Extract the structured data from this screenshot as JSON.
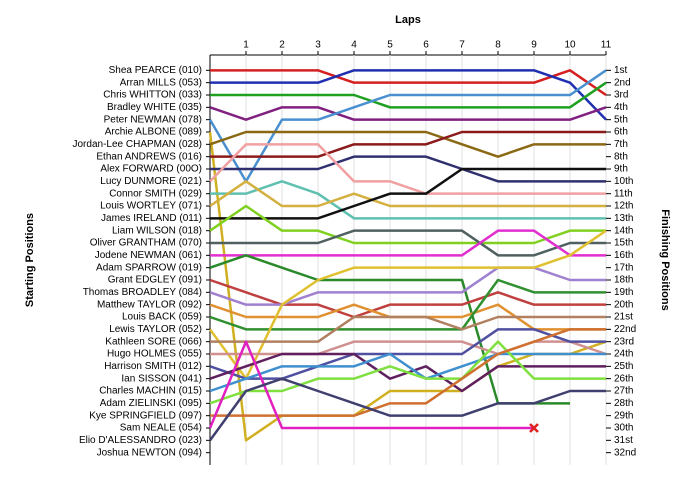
{
  "chart_data": {
    "type": "line",
    "xlabel": "Laps",
    "ylabel": "Starting Positions",
    "y2label": "Finishing Positions",
    "xlim": [
      0,
      11
    ],
    "xticks": [
      1,
      2,
      3,
      4,
      5,
      6,
      7,
      8,
      9,
      10,
      11
    ],
    "ylim": [
      33,
      0
    ],
    "yticks": [
      {
        "value": 1,
        "label": "1st"
      },
      {
        "value": 2,
        "label": "2nd"
      },
      {
        "value": 3,
        "label": "3rd"
      },
      {
        "value": 4,
        "label": "4th"
      },
      {
        "value": 5,
        "label": "5th"
      },
      {
        "value": 6,
        "label": "6th"
      },
      {
        "value": 7,
        "label": "7th"
      },
      {
        "value": 8,
        "label": "8th"
      },
      {
        "value": 9,
        "label": "9th"
      },
      {
        "value": 10,
        "label": "10th"
      },
      {
        "value": 11,
        "label": "11th"
      },
      {
        "value": 12,
        "label": "12th"
      },
      {
        "value": 13,
        "label": "13th"
      },
      {
        "value": 14,
        "label": "14th"
      },
      {
        "value": 15,
        "label": "15th"
      },
      {
        "value": 16,
        "label": "16th"
      },
      {
        "value": 17,
        "label": "17th"
      },
      {
        "value": 18,
        "label": "18th"
      },
      {
        "value": 19,
        "label": "19th"
      },
      {
        "value": 20,
        "label": "20th"
      },
      {
        "value": 21,
        "label": "21st"
      },
      {
        "value": 22,
        "label": "22nd"
      },
      {
        "value": 23,
        "label": "23rd"
      },
      {
        "value": 24,
        "label": "24th"
      },
      {
        "value": 25,
        "label": "25th"
      },
      {
        "value": 26,
        "label": "26th"
      },
      {
        "value": 27,
        "label": "27th"
      },
      {
        "value": 28,
        "label": "28th"
      },
      {
        "value": 29,
        "label": "29th"
      },
      {
        "value": 30,
        "label": "30th"
      },
      {
        "value": 31,
        "label": "31st"
      },
      {
        "value": 32,
        "label": "32nd"
      }
    ],
    "grid": true,
    "series": [
      {
        "name": "Shea PEARCE (010)",
        "color": "#d42020",
        "values": [
          1,
          1,
          1,
          1,
          2,
          2,
          2,
          2,
          2,
          2,
          1,
          3
        ]
      },
      {
        "name": "Arran MILLS (053)",
        "color": "#2030b0",
        "values": [
          2,
          2,
          2,
          2,
          1,
          1,
          1,
          1,
          1,
          1,
          2,
          5
        ]
      },
      {
        "name": "Chris WHITTON (033)",
        "color": "#20a020",
        "values": [
          3,
          3,
          3,
          3,
          3,
          4,
          4,
          4,
          4,
          4,
          4,
          2
        ]
      },
      {
        "name": "Bradley WHITE (035)",
        "color": "#802080",
        "values": [
          4,
          5,
          4,
          4,
          5,
          5,
          5,
          5,
          5,
          5,
          5,
          4
        ]
      },
      {
        "name": "Peter NEWMAN (078)",
        "color": "#4a90d0",
        "values": [
          5,
          10,
          5,
          5,
          4,
          3,
          3,
          3,
          3,
          3,
          3,
          1
        ]
      },
      {
        "name": "Archie ALBONE (089)",
        "color": "#d0b020",
        "values": [
          6,
          31,
          29,
          29,
          29,
          27,
          27,
          27,
          25,
          24,
          24,
          23
        ]
      },
      {
        "name": "Jordan-Lee CHAPMAN (028)",
        "color": "#8b6914",
        "values": [
          7,
          6,
          6,
          6,
          6,
          6,
          6,
          7,
          8,
          7,
          7,
          7
        ]
      },
      {
        "name": "Ethan ANDREWS (016)",
        "color": "#8b1a1a",
        "values": [
          8,
          8,
          8,
          8,
          7,
          7,
          7,
          6,
          6,
          6,
          6,
          6
        ]
      },
      {
        "name": "Alex FORWARD (00O)",
        "color": "#303070",
        "values": [
          9,
          9,
          9,
          9,
          8,
          8,
          8,
          9,
          10,
          10,
          10,
          10
        ]
      },
      {
        "name": "Lucy DUNMORE (021)",
        "color": "#f0a0a0",
        "values": [
          10,
          7,
          7,
          7,
          10,
          10,
          11,
          11,
          11,
          11,
          11,
          11
        ]
      },
      {
        "name": "Connor SMITH (029)",
        "color": "#60c0b0",
        "values": [
          11,
          11,
          10,
          11,
          13,
          13,
          13,
          13,
          13,
          13,
          13,
          13
        ]
      },
      {
        "name": "Louis WORTLEY (071)",
        "color": "#d4b040",
        "values": [
          12,
          10,
          12,
          12,
          11,
          12,
          12,
          12,
          12,
          12,
          12,
          12
        ]
      },
      {
        "name": "James IRELAND (011)",
        "color": "#101010",
        "values": [
          13,
          13,
          13,
          13,
          12,
          11,
          11,
          9,
          9,
          9,
          9,
          9
        ]
      },
      {
        "name": "Liam WILSON (018)",
        "color": "#80d020",
        "values": [
          14,
          12,
          14,
          14,
          15,
          15,
          15,
          15,
          15,
          15,
          14,
          14
        ]
      },
      {
        "name": "Oliver GRANTHAM (070)",
        "color": "#506060",
        "values": [
          15,
          15,
          15,
          15,
          14,
          14,
          14,
          14,
          16,
          16,
          15,
          15
        ]
      },
      {
        "name": "Jodene NEWMAN (061)",
        "color": "#e030d0",
        "values": [
          16,
          16,
          16,
          16,
          16,
          16,
          16,
          16,
          14,
          14,
          16,
          16
        ]
      },
      {
        "name": "Adam SPARROW (019)",
        "color": "#2a8a2a",
        "values": [
          17,
          16,
          17,
          18,
          18,
          18,
          18,
          18,
          28,
          28,
          28,
          null
        ]
      },
      {
        "name": "Grant EDGLEY (091)",
        "color": "#c04040",
        "values": [
          18,
          19,
          20,
          20,
          21,
          20,
          20,
          20,
          19,
          20,
          20,
          20
        ]
      },
      {
        "name": "Thomas BROADLEY (084)",
        "color": "#a080d0",
        "values": [
          19,
          20,
          20,
          19,
          19,
          19,
          19,
          19,
          17,
          17,
          18,
          18
        ]
      },
      {
        "name": "Matthew TAYLOR (092)",
        "color": "#e09030",
        "values": [
          20,
          21,
          21,
          21,
          20,
          21,
          21,
          21,
          20,
          22,
          22,
          22
        ]
      },
      {
        "name": "Louis BACK (059)",
        "color": "#309030",
        "values": [
          21,
          22,
          22,
          22,
          22,
          22,
          22,
          22,
          18,
          19,
          19,
          19
        ]
      },
      {
        "name": "Lewis TAYLOR (052)",
        "color": "#e0c030",
        "values": [
          22,
          26,
          20,
          18,
          17,
          17,
          17,
          17,
          17,
          17,
          16,
          14
        ]
      },
      {
        "name": "Kathleen SORE (066)",
        "color": "#b08060",
        "values": [
          23,
          23,
          23,
          23,
          21,
          21,
          21,
          22,
          21,
          21,
          21,
          21
        ]
      },
      {
        "name": "Hugo HOLMES (055)",
        "color": "#d09090",
        "values": [
          24,
          24,
          24,
          24,
          23,
          23,
          23,
          23,
          24,
          23,
          23,
          24
        ]
      },
      {
        "name": "Harrison SMITH (012)",
        "color": "#5050a0",
        "values": [
          25,
          26,
          26,
          25,
          24,
          24,
          24,
          24,
          22,
          22,
          23,
          23
        ]
      },
      {
        "name": "Ian SISSON (041)",
        "color": "#602060",
        "values": [
          26,
          25,
          24,
          24,
          24,
          26,
          25,
          27,
          25,
          25,
          25,
          25
        ]
      },
      {
        "name": "Charles MACHIN (015)",
        "color": "#4090d0",
        "values": [
          27,
          26,
          25,
          25,
          25,
          24,
          26,
          25,
          24,
          24,
          24,
          24
        ]
      },
      {
        "name": "Adam ZIELINSKI (095)",
        "color": "#80e040",
        "values": [
          28,
          27,
          27,
          26,
          26,
          25,
          26,
          26,
          23,
          26,
          26,
          26
        ]
      },
      {
        "name": "Kye SPRINGFIELD (097)",
        "color": "#d07030",
        "values": [
          29,
          29,
          29,
          29,
          29,
          28,
          28,
          26,
          24,
          23,
          22,
          22
        ]
      },
      {
        "name": "Sam NEALE (054)",
        "color": "#e020c0",
        "values": [
          30,
          23,
          30,
          30,
          30,
          30,
          30,
          30,
          30,
          30,
          null,
          null
        ],
        "retired": true
      },
      {
        "name": "Elio D'ALESSANDRO (023)",
        "color": "#404070",
        "values": [
          31,
          27,
          26,
          27,
          28,
          29,
          29,
          29,
          28,
          28,
          27,
          27
        ]
      },
      {
        "name": "Joshua NEWTON (094)",
        "color": "#808080",
        "values": [
          32
        ]
      }
    ]
  }
}
